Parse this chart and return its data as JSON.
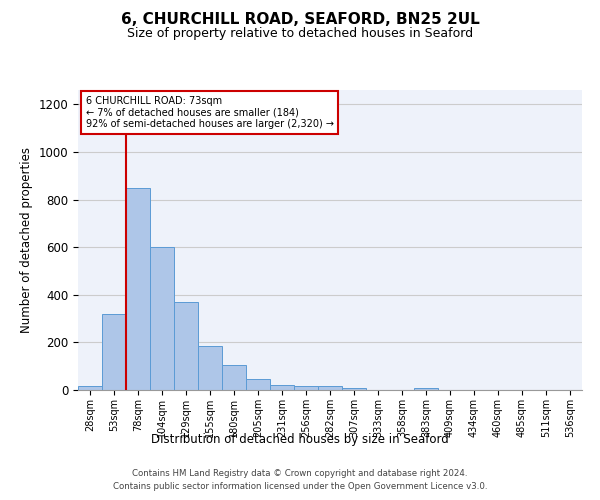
{
  "title_line1": "6, CHURCHILL ROAD, SEAFORD, BN25 2UL",
  "title_line2": "Size of property relative to detached houses in Seaford",
  "xlabel": "Distribution of detached houses by size in Seaford",
  "ylabel": "Number of detached properties",
  "bar_labels": [
    "28sqm",
    "53sqm",
    "78sqm",
    "104sqm",
    "129sqm",
    "155sqm",
    "180sqm",
    "205sqm",
    "231sqm",
    "256sqm",
    "282sqm",
    "307sqm",
    "333sqm",
    "358sqm",
    "383sqm",
    "409sqm",
    "434sqm",
    "460sqm",
    "485sqm",
    "511sqm",
    "536sqm"
  ],
  "bar_heights": [
    15,
    320,
    850,
    600,
    370,
    185,
    105,
    45,
    20,
    18,
    18,
    10,
    0,
    0,
    10,
    0,
    0,
    0,
    0,
    0,
    0
  ],
  "bar_color": "#aec6e8",
  "bar_edge_color": "#5b9bd5",
  "ylim": [
    0,
    1260
  ],
  "yticks": [
    0,
    200,
    400,
    600,
    800,
    1000,
    1200
  ],
  "annotation_box_text_line1": "6 CHURCHILL ROAD: 73sqm",
  "annotation_box_text_line2": "← 7% of detached houses are smaller (184)",
  "annotation_box_text_line3": "92% of semi-detached houses are larger (2,320) →",
  "vline_x_index": 1.5,
  "annotation_box_color": "#ffffff",
  "annotation_box_edge_color": "#cc0000",
  "vline_color": "#cc0000",
  "footer_line1": "Contains HM Land Registry data © Crown copyright and database right 2024.",
  "footer_line2": "Contains public sector information licensed under the Open Government Licence v3.0.",
  "grid_color": "#cccccc",
  "background_color": "#eef2fa"
}
